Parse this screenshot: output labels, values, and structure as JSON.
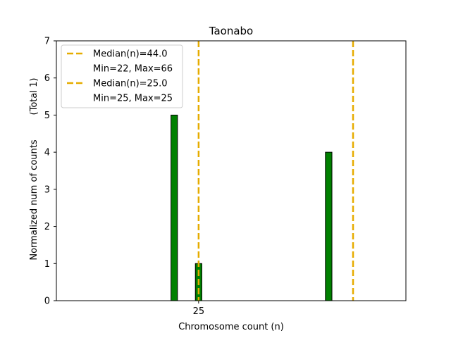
{
  "chart_data": {
    "type": "bar",
    "title": "Taonabo",
    "xlabel": "Chromosome count (n)",
    "ylabel": "Normalized num of counts",
    "ylabel_suffix": "(Total 1)",
    "xlim": [
      7.5,
      50.5
    ],
    "ylim": [
      0,
      7
    ],
    "yticks": [
      0,
      1,
      2,
      3,
      4,
      5,
      6,
      7
    ],
    "xticks": [
      25
    ],
    "bar_width": 0.8,
    "bar_color": "#008000",
    "bars": [
      {
        "x": 22,
        "value": 5
      },
      {
        "x": 25,
        "value": 1
      },
      {
        "x": 41,
        "value": 4
      }
    ],
    "median_lines": [
      {
        "x": 44.0,
        "label": "Median(n)=44.0",
        "range_label": "Min=22, Max=66"
      },
      {
        "x": 25.0,
        "label": "Median(n)=25.0",
        "range_label": "Min=25, Max=25"
      }
    ],
    "median_color": "#e6ac00",
    "legend_position": "top-left"
  }
}
